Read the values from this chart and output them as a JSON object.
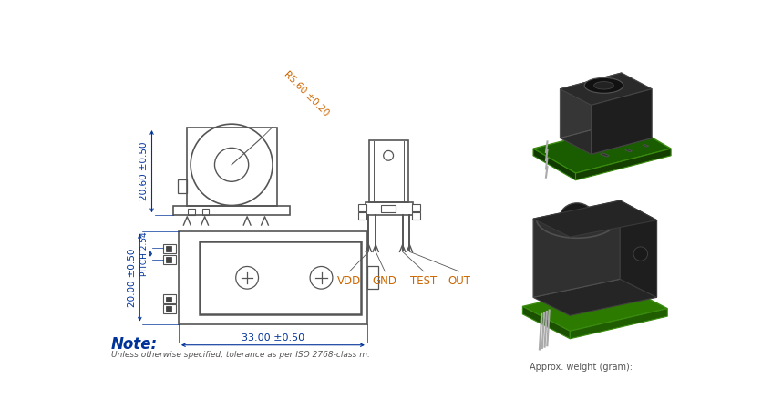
{
  "bg_color": "#ffffff",
  "line_color": "#555555",
  "dim_color": "#003399",
  "radius_color": "#cc6600",
  "small_text_color": "#555555",
  "front_view_dim_height": "20.60 ±0.50",
  "front_view_dim_radius": "R5.60 ±0.20",
  "top_view_dim_width": "33.00 ±0.50",
  "top_view_dim_height": "20.00 ±0.50",
  "top_view_pitch": "PITCH 2.54",
  "pin_labels": [
    "VDD",
    "GND",
    "TEST",
    "OUT"
  ],
  "note_text": "Note:",
  "note_sub": "Unless otherwise specified, tolerance as per ISO 2768-class m.",
  "approx_weight": "Approx. weight (gram):"
}
